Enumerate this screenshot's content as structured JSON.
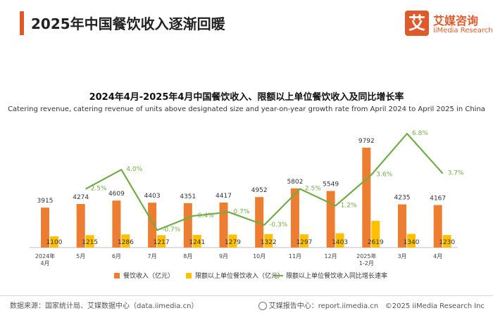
{
  "header": {
    "title": "2025年中国餐饮收入逐渐回暖",
    "logo": {
      "mark": "艾",
      "name_cn": "艾媒咨询",
      "name_en": "iiMedia Research"
    }
  },
  "chart_data": {
    "type": "bar",
    "title": "2024年4月-2025年4月中国餐饮收入、限额以上单位餐饮收入及同比增长率",
    "subtitle": "Catering revenue, catering revenue of units above designated size and year-on-year growth rate from April 2024 to April 2025 in China",
    "categories": [
      "2024年\n4月",
      "5月",
      "6月",
      "7月",
      "8月",
      "9月",
      "10月",
      "11月",
      "12月",
      "2025年\n1-2月",
      "3月",
      "4月"
    ],
    "series": [
      {
        "name": "餐饮收入（亿元）",
        "type": "bar",
        "color": "#ed7d31",
        "values": [
          3915,
          4274,
          4609,
          4403,
          4351,
          4417,
          4952,
          5802,
          5549,
          9792,
          4235,
          4167
        ]
      },
      {
        "name": "限额以上单位餐饮收入（亿元）",
        "type": "bar",
        "color": "#ffc000",
        "values": [
          1100,
          1215,
          1286,
          1217,
          1241,
          1279,
          1322,
          1297,
          1403,
          2619,
          1340,
          1230
        ]
      },
      {
        "name": "限额以上单位餐饮收入同比增长速率",
        "type": "line",
        "color": "#70ad47",
        "values": [
          null,
          2.5,
          4.0,
          -0.7,
          0.4,
          0.7,
          -0.3,
          2.5,
          1.2,
          3.6,
          6.8,
          3.7
        ],
        "labels": [
          "",
          "2.5%",
          "4.0%",
          "-0.7%",
          "0.4%",
          "0.7%",
          "-0.3%",
          "2.5%",
          "1.2%",
          "3.6%",
          "6.8%",
          "3.7%"
        ]
      }
    ],
    "legend_position": "bottom",
    "grid": false
  },
  "footer": {
    "source": "数据来源：国家统计局、艾媒数据中心（data.iimedia.cn）",
    "report_center": "艾媒报告中心：report.iimedia.cn",
    "copyright": "©2025  iiMedia Research  Inc"
  }
}
